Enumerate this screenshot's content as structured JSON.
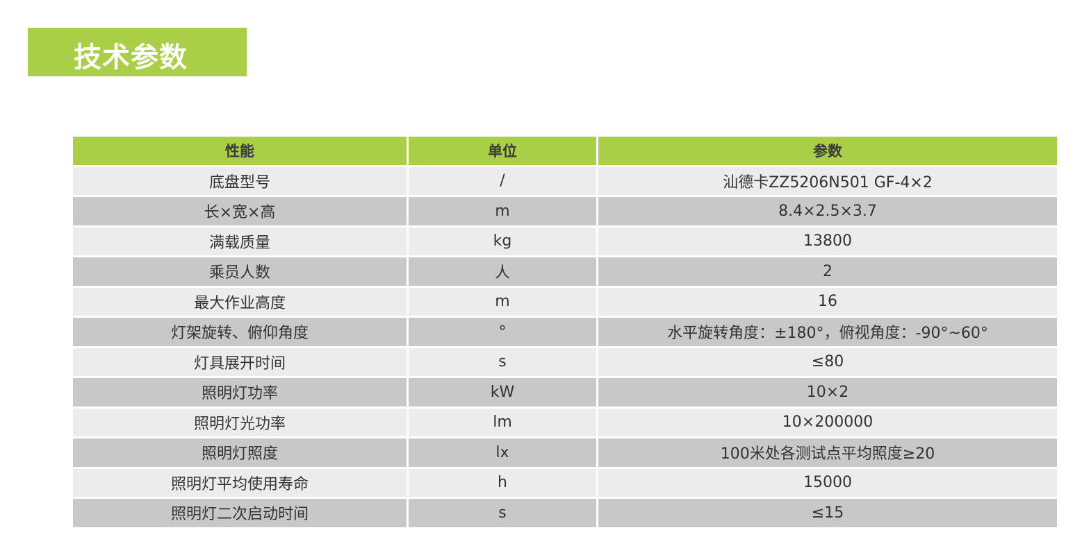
{
  "title": "技术参数",
  "colors": {
    "accent": "#a8cf45",
    "row_light": "#ececec",
    "row_dark": "#c8c8c8"
  },
  "table": {
    "headers": [
      "性能",
      "单位",
      "参数"
    ],
    "rows": [
      [
        "底盘型号",
        "/",
        "汕德卡ZZ5206N501 GF-4×2"
      ],
      [
        "长×宽×高",
        "m",
        "8.4×2.5×3.7"
      ],
      [
        "满载质量",
        "kg",
        "13800"
      ],
      [
        "乘员人数",
        "人",
        "2"
      ],
      [
        "最大作业高度",
        "m",
        "16"
      ],
      [
        "灯架旋转、俯仰角度",
        "°",
        "水平旋转角度：±180°，俯视角度：-90°~60°"
      ],
      [
        "灯具展开时间",
        "s",
        "≤80"
      ],
      [
        "照明灯功率",
        "kW",
        "10×2"
      ],
      [
        "照明灯光功率",
        "lm",
        "10×200000"
      ],
      [
        "照明灯照度",
        "lx",
        "100米处各测试点平均照度≥20"
      ],
      [
        "照明灯平均使用寿命",
        "h",
        "15000"
      ],
      [
        "照明灯二次启动时间",
        "s",
        "≤15"
      ]
    ]
  }
}
